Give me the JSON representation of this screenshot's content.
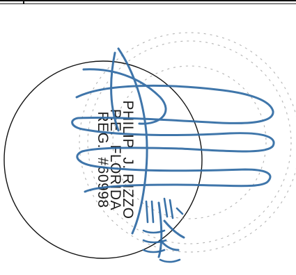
{
  "seal": {
    "name_line": "PHILIP  J. RIZZO",
    "title_line": "P.E.  FLORIDA",
    "reg_line": "REG.  #60998",
    "border_color": "#111111",
    "ink_color": "#1b1b1b"
  },
  "signature": {
    "ink_color": "#2f6aa3",
    "kind": "handwritten-signature"
  },
  "date_mark": {
    "ink_color": "#2f6aa3",
    "kind": "handwritten-date"
  }
}
